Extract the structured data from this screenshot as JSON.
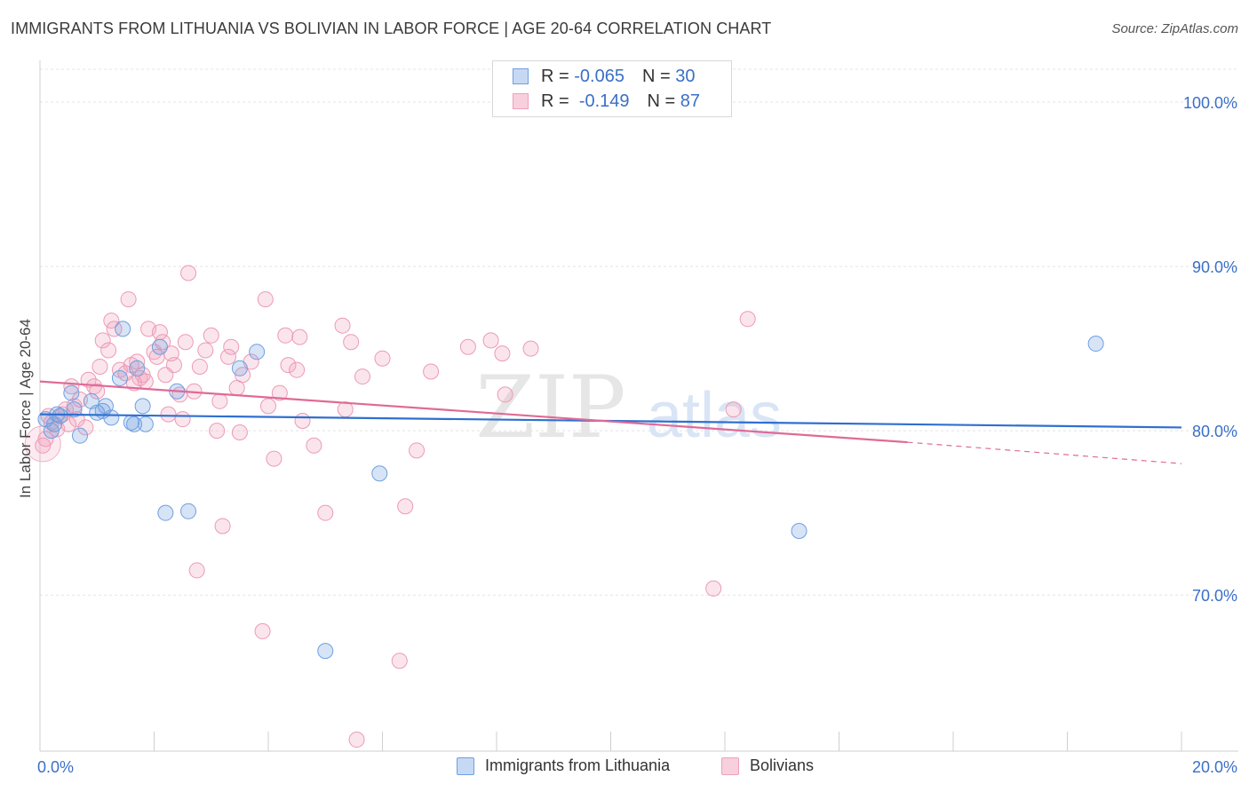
{
  "title": "IMMIGRANTS FROM LITHUANIA VS BOLIVIAN IN LABOR FORCE | AGE 20-64 CORRELATION CHART",
  "source": "Source: ZipAtlas.com",
  "watermark": {
    "zip": "ZIP",
    "atlas": "atlas"
  },
  "legend": {
    "r_label": "R =",
    "n_label": "N =",
    "series1": {
      "r": "-0.065",
      "n": "30"
    },
    "series2": {
      "r": "-0.149",
      "n": "87"
    }
  },
  "bottom_legend": {
    "series1": "Immigrants from Lithuania",
    "series2": "Bolivians"
  },
  "chart_data": {
    "type": "scatter",
    "ylabel": "In Labor Force | Age 20-64",
    "xlabel": "",
    "xlim": [
      0,
      20
    ],
    "ylim": [
      60.5,
      102
    ],
    "x_tick_labels": [
      {
        "value": 0,
        "label": "0.0%"
      },
      {
        "value": 20,
        "label": "20.0%"
      }
    ],
    "y_tick_labels": [
      {
        "value": 100,
        "label": "100.0%"
      },
      {
        "value": 90,
        "label": "90.0%"
      },
      {
        "value": 80,
        "label": "80.0%"
      },
      {
        "value": 70,
        "label": "70.0%"
      }
    ],
    "colors": {
      "series1": "#6f9fe0",
      "series2": "#f0a0bb",
      "line1": "#2f6fd0",
      "line2": "#e06a96"
    },
    "series": [
      {
        "name": "Immigrants from Lithuania",
        "color": "#6f9fe0",
        "trend": {
          "x0": 0,
          "y0": 81.0,
          "x1": 20,
          "y1": 80.2
        },
        "points": [
          [
            0.1,
            80.7
          ],
          [
            0.3,
            81.0
          ],
          [
            0.35,
            80.9
          ],
          [
            0.25,
            80.4
          ],
          [
            0.55,
            82.3
          ],
          [
            0.6,
            81.3
          ],
          [
            0.7,
            79.7
          ],
          [
            0.9,
            81.8
          ],
          [
            1.0,
            81.1
          ],
          [
            1.1,
            81.2
          ],
          [
            1.15,
            81.5
          ],
          [
            1.25,
            80.8
          ],
          [
            1.4,
            83.2
          ],
          [
            1.45,
            86.2
          ],
          [
            1.6,
            80.5
          ],
          [
            1.65,
            80.4
          ],
          [
            1.7,
            83.8
          ],
          [
            1.8,
            81.5
          ],
          [
            1.85,
            80.4
          ],
          [
            2.1,
            85.1
          ],
          [
            2.4,
            82.4
          ],
          [
            2.2,
            75.0
          ],
          [
            2.6,
            75.1
          ],
          [
            3.5,
            83.8
          ],
          [
            3.8,
            84.8
          ],
          [
            5.0,
            66.6
          ],
          [
            5.95,
            77.4
          ],
          [
            13.3,
            73.9
          ],
          [
            18.5,
            85.3
          ],
          [
            0.2,
            80.0
          ]
        ]
      },
      {
        "name": "Bolivians",
        "color": "#f0a0bb",
        "trend": {
          "x0": 0,
          "y0": 83.0,
          "x1": 15.2,
          "y1": 79.3,
          "dash_x1": 20,
          "dash_y1": 78.0
        },
        "points": [
          [
            0.1,
            79.5
          ],
          [
            0.2,
            80.5
          ],
          [
            0.3,
            80.1
          ],
          [
            0.4,
            81.0
          ],
          [
            0.5,
            80.4
          ],
          [
            0.55,
            82.7
          ],
          [
            0.6,
            81.5
          ],
          [
            0.7,
            81.9
          ],
          [
            0.8,
            80.2
          ],
          [
            0.85,
            83.1
          ],
          [
            0.95,
            82.7
          ],
          [
            1.0,
            82.4
          ],
          [
            1.1,
            85.5
          ],
          [
            1.2,
            84.9
          ],
          [
            1.25,
            86.7
          ],
          [
            1.3,
            86.2
          ],
          [
            1.4,
            83.7
          ],
          [
            1.5,
            83.5
          ],
          [
            1.55,
            88.0
          ],
          [
            1.6,
            84.0
          ],
          [
            1.7,
            84.2
          ],
          [
            1.75,
            83.2
          ],
          [
            1.8,
            83.4
          ],
          [
            1.85,
            83.0
          ],
          [
            1.9,
            86.2
          ],
          [
            2.0,
            84.8
          ],
          [
            2.05,
            84.5
          ],
          [
            2.1,
            86.0
          ],
          [
            2.15,
            85.4
          ],
          [
            2.2,
            83.4
          ],
          [
            2.3,
            84.7
          ],
          [
            2.35,
            84.0
          ],
          [
            2.45,
            82.2
          ],
          [
            2.5,
            80.7
          ],
          [
            2.55,
            85.4
          ],
          [
            2.6,
            89.6
          ],
          [
            2.7,
            82.4
          ],
          [
            2.75,
            71.5
          ],
          [
            2.8,
            83.9
          ],
          [
            2.9,
            84.9
          ],
          [
            3.0,
            85.8
          ],
          [
            3.1,
            80.0
          ],
          [
            3.2,
            74.2
          ],
          [
            3.3,
            84.5
          ],
          [
            3.35,
            85.1
          ],
          [
            3.45,
            82.6
          ],
          [
            3.5,
            79.9
          ],
          [
            3.55,
            83.4
          ],
          [
            3.7,
            84.2
          ],
          [
            3.9,
            67.8
          ],
          [
            3.95,
            88.0
          ],
          [
            4.0,
            81.5
          ],
          [
            4.1,
            78.3
          ],
          [
            4.3,
            85.8
          ],
          [
            4.35,
            84.0
          ],
          [
            4.5,
            83.7
          ],
          [
            4.55,
            85.7
          ],
          [
            4.6,
            80.6
          ],
          [
            4.8,
            79.1
          ],
          [
            5.0,
            75.0
          ],
          [
            5.3,
            86.4
          ],
          [
            5.35,
            81.3
          ],
          [
            5.45,
            85.4
          ],
          [
            5.55,
            61.2
          ],
          [
            5.65,
            83.3
          ],
          [
            6.0,
            84.4
          ],
          [
            6.3,
            66.0
          ],
          [
            6.4,
            75.4
          ],
          [
            6.6,
            78.8
          ],
          [
            6.85,
            83.6
          ],
          [
            7.5,
            85.1
          ],
          [
            7.9,
            85.5
          ],
          [
            8.1,
            84.7
          ],
          [
            8.15,
            82.2
          ],
          [
            8.6,
            85.0
          ],
          [
            11.8,
            70.4
          ],
          [
            12.15,
            81.3
          ],
          [
            12.4,
            86.8
          ],
          [
            0.15,
            80.9
          ],
          [
            0.45,
            81.3
          ],
          [
            1.05,
            83.9
          ],
          [
            1.65,
            82.9
          ],
          [
            2.25,
            81.0
          ],
          [
            3.15,
            81.8
          ],
          [
            4.2,
            82.3
          ],
          [
            0.05,
            79.1
          ],
          [
            0.65,
            80.7
          ]
        ]
      }
    ]
  }
}
